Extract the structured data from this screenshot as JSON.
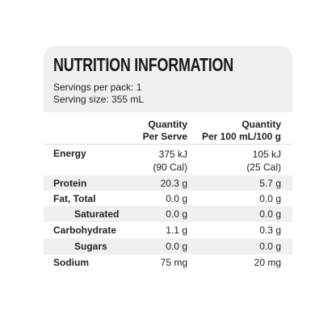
{
  "title": "NUTRITION INFORMATION",
  "servings_per_pack": "Servings per pack: 1",
  "serving_size": "Serving size: 355 mL",
  "headers": {
    "per_serve": [
      "Quantity",
      "Per Serve"
    ],
    "per_100": [
      "Quantity",
      "Per 100 mL/100 g"
    ]
  },
  "rows": [
    {
      "label": "Energy",
      "serve": [
        "375 kJ",
        "(90 Cal)"
      ],
      "per100": [
        "105 kJ",
        "(25 Cal)"
      ]
    },
    {
      "label": "Protein",
      "serve": [
        "20.3 g"
      ],
      "per100": [
        "5.7 g"
      ]
    },
    {
      "label": "Fat, Total",
      "serve": [
        "0.0 g"
      ],
      "per100": [
        "0.0 g"
      ]
    },
    {
      "label": "Saturated",
      "serve": [
        "0.0 g"
      ],
      "per100": [
        "0.0 g"
      ]
    },
    {
      "label": "Carbohydrate",
      "serve": [
        "1.1 g"
      ],
      "per100": [
        "0.3 g"
      ]
    },
    {
      "label": "Sugars",
      "serve": [
        "0.0 g"
      ],
      "per100": [
        "0.0 g"
      ]
    },
    {
      "label": "Sodium",
      "serve": [
        "75 mg"
      ],
      "per100": [
        "20 mg"
      ]
    }
  ]
}
